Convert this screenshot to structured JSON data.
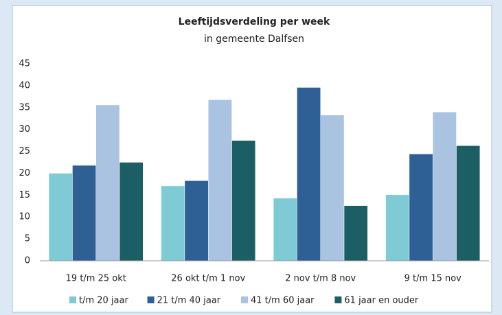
{
  "chart_data": {
    "type": "bar",
    "title": "Leeftijdsverdeling per week",
    "subtitle": "in gemeente Dalfsen",
    "categories": [
      "19 t/m 25 okt",
      "26 okt t/m 1 nov",
      "2 nov t/m 8 nov",
      "9 t/m 15 nov"
    ],
    "series": [
      {
        "name": "t/m 20 jaar",
        "color": "#7ecbd6",
        "values": [
          20.0,
          17.1,
          14.3,
          15.1
        ]
      },
      {
        "name": "21 t/m 40 jaar",
        "color": "#2e5f95",
        "values": [
          21.8,
          18.3,
          39.6,
          24.4
        ]
      },
      {
        "name": "41 t/m 60 jaar",
        "color": "#a9c3e0",
        "values": [
          35.6,
          36.8,
          33.3,
          34.0
        ]
      },
      {
        "name": "61 jaar en ouder",
        "color": "#1b5e63",
        "values": [
          22.5,
          27.5,
          12.6,
          26.3
        ]
      }
    ],
    "ylim": [
      0,
      45
    ],
    "yticks": [
      0,
      5,
      10,
      15,
      20,
      25,
      30,
      35,
      40,
      45
    ],
    "grid": false,
    "legend": "bottom"
  }
}
